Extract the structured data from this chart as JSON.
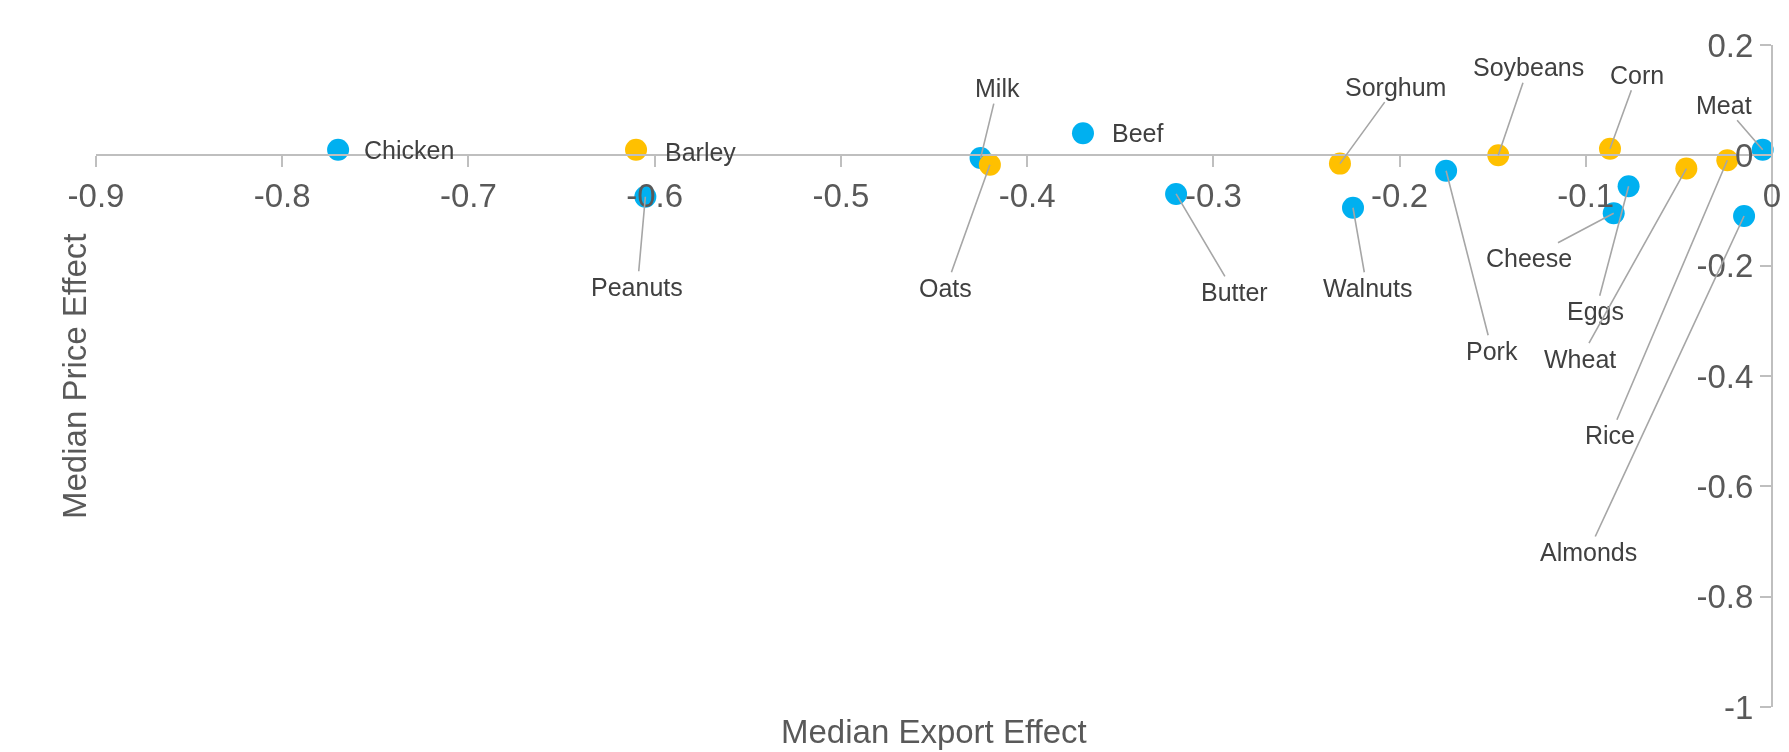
{
  "chart_data": {
    "type": "scatter",
    "xlabel": "Median Export Effect",
    "ylabel": "Median Price Effect",
    "series": [
      {
        "color": "#00b0f0",
        "x": [
          -0.77,
          -0.605,
          -0.425,
          -0.37,
          -0.32,
          -0.225,
          -0.175,
          -0.077,
          -0.085,
          -0.015,
          -0.005
        ],
        "values": [
          0.01,
          -0.075,
          -0.005,
          0.04,
          -0.07,
          -0.095,
          -0.028,
          -0.056,
          -0.105,
          -0.11,
          0.01
        ]
      },
      {
        "color": "#ffc000",
        "x": [
          -0.61,
          -0.42,
          -0.232,
          -0.147,
          -0.087,
          -0.046,
          -0.024
        ],
        "values": [
          0.01,
          -0.017,
          -0.015,
          0,
          0.012,
          -0.024,
          -0.009
        ]
      }
    ],
    "annotations": [
      {
        "text": "Chicken",
        "x": -0.77,
        "y": 0.01
      },
      {
        "text": "Peanuts",
        "x": -0.605,
        "y": -0.075
      },
      {
        "text": "Milk",
        "x": -0.425,
        "y": -0.005
      },
      {
        "text": "Beef",
        "x": -0.37,
        "y": 0.04
      },
      {
        "text": "Butter",
        "x": -0.32,
        "y": -0.07
      },
      {
        "text": "Walnuts",
        "x": -0.225,
        "y": -0.095
      },
      {
        "text": "Pork",
        "x": -0.175,
        "y": -0.028
      },
      {
        "text": "Eggs",
        "x": -0.077,
        "y": -0.056
      },
      {
        "text": "Cheese",
        "x": -0.085,
        "y": -0.105
      },
      {
        "text": "Almonds",
        "x": -0.015,
        "y": -0.11
      },
      {
        "text": "Meat",
        "x": -0.005,
        "y": 0.01
      },
      {
        "text": "Barley",
        "x": -0.61,
        "y": 0.01
      },
      {
        "text": "Oats",
        "x": -0.42,
        "y": -0.017
      },
      {
        "text": "Sorghum",
        "x": -0.232,
        "y": -0.015
      },
      {
        "text": "Soybeans",
        "x": -0.147,
        "y": 0
      },
      {
        "text": "Corn",
        "x": -0.087,
        "y": 0.012
      },
      {
        "text": "Wheat",
        "x": -0.046,
        "y": -0.024
      },
      {
        "text": "Rice",
        "x": -0.024,
        "y": -0.009
      }
    ],
    "xlim": [
      -0.9,
      0
    ],
    "xticks": [
      -0.9,
      -0.8,
      -0.7,
      -0.6,
      -0.5,
      -0.4,
      -0.3,
      -0.2,
      -0.1,
      0
    ],
    "ylim": [
      -1,
      0.2
    ],
    "yticks": [
      -1,
      -0.8,
      -0.6,
      -0.4,
      -0.2,
      0,
      0.2
    ],
    "grid": false,
    "marker": "circle"
  }
}
